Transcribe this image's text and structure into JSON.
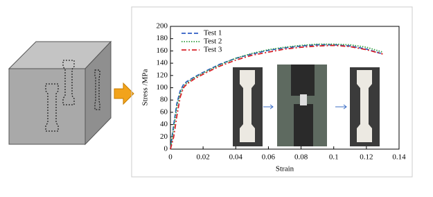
{
  "chart_data": {
    "type": "line",
    "x_label": "Strain",
    "y_label": "Stress /MPa",
    "x": [
      0,
      0.002,
      0.004,
      0.006,
      0.008,
      0.01,
      0.015,
      0.02,
      0.03,
      0.04,
      0.05,
      0.06,
      0.07,
      0.08,
      0.09,
      0.1,
      0.11,
      0.12,
      0.13
    ],
    "series": [
      {
        "name": "Test 1",
        "color": "#2f5cc4",
        "style": "dashed",
        "values": [
          0,
          40,
          75,
          95,
          105,
          110,
          118,
          125,
          138,
          148,
          155,
          161,
          165,
          168,
          170,
          170,
          168,
          163,
          155
        ]
      },
      {
        "name": "Test 2",
        "color": "#2e9a3c",
        "style": "dotted",
        "values": [
          0,
          35,
          70,
          92,
          102,
          108,
          117,
          124,
          137,
          148,
          156,
          162,
          166,
          169,
          171,
          171,
          170,
          166,
          158
        ]
      },
      {
        "name": "Test 3",
        "color": "#d8232a",
        "style": "dashdot",
        "values": [
          0,
          20,
          55,
          85,
          100,
          106,
          115,
          122,
          135,
          145,
          153,
          158,
          163,
          166,
          168,
          169,
          167,
          162,
          155
        ]
      }
    ],
    "xlim": [
      0,
      0.14
    ],
    "xticks": [
      0,
      0.02,
      0.04,
      0.06,
      0.08,
      0.1,
      0.12,
      0.14
    ],
    "ylim": [
      0,
      200
    ],
    "yticks": [
      0,
      20,
      40,
      60,
      80,
      100,
      120,
      140,
      160,
      180,
      200
    ],
    "legend": "upper-left"
  }
}
